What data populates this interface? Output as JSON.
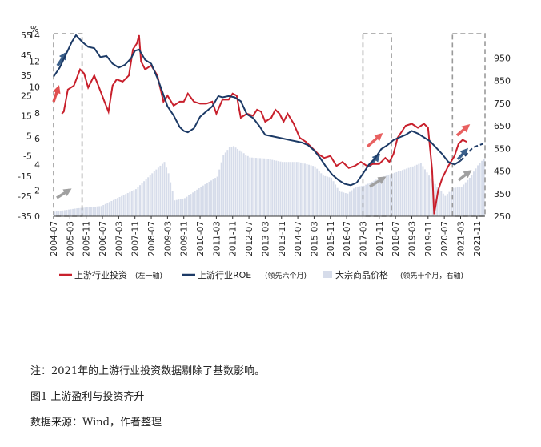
{
  "chart_data": {
    "type": "line",
    "unit_label": "%",
    "left_axis": {
      "outer_ticks": [
        "55",
        "45",
        "35",
        "25",
        "15",
        "5",
        "-5",
        "-15",
        "-25",
        "-35"
      ],
      "inner_ticks": [
        "14",
        "12",
        "10",
        "8",
        "6",
        "4",
        "2",
        "0"
      ],
      "outer_range": [
        -35,
        55
      ]
    },
    "right_axis": {
      "ticks": [
        "950",
        "850",
        "750",
        "650",
        "550",
        "450",
        "350",
        "250"
      ],
      "range": [
        250,
        1050
      ]
    },
    "x_ticks": [
      "2004-07",
      "2005-03",
      "2005-11",
      "2006-07",
      "2007-03",
      "2007-11",
      "2008-07",
      "2009-03",
      "2009-11",
      "2010-07",
      "2011-03",
      "2011-11",
      "2012-07",
      "2013-03",
      "2013-11",
      "2014-07",
      "2015-03",
      "2015-11",
      "2016-07",
      "2017-03",
      "2017-11",
      "2018-07",
      "2019-03",
      "2019-11",
      "2020-07",
      "2021-03",
      "2021-11"
    ],
    "x_range": [
      "2004-07",
      "2022-03"
    ],
    "series": [
      {
        "name": "上游行业投资",
        "name_suffix": "(左一轴)",
        "color": "#c8202c",
        "axis": "left_outer",
        "points": [
          [
            "2004-11",
            16
          ],
          [
            "2004-12",
            17
          ],
          [
            "2005-02",
            28
          ],
          [
            "2005-05",
            30
          ],
          [
            "2005-08",
            38
          ],
          [
            "2005-10",
            36
          ],
          [
            "2005-12",
            29
          ],
          [
            "2006-03",
            35
          ],
          [
            "2006-05",
            30
          ],
          [
            "2006-08",
            22
          ],
          [
            "2006-10",
            17
          ],
          [
            "2006-12",
            30
          ],
          [
            "2007-02",
            33
          ],
          [
            "2007-05",
            32
          ],
          [
            "2007-08",
            35
          ],
          [
            "2007-10",
            48
          ],
          [
            "2007-12",
            51
          ],
          [
            "2008-01",
            55
          ],
          [
            "2008-02",
            42
          ],
          [
            "2008-04",
            38
          ],
          [
            "2008-07",
            40
          ],
          [
            "2008-10",
            35
          ],
          [
            "2009-01",
            22
          ],
          [
            "2009-03",
            25
          ],
          [
            "2009-06",
            20
          ],
          [
            "2009-09",
            22
          ],
          [
            "2009-11",
            22
          ],
          [
            "2010-01",
            26
          ],
          [
            "2010-04",
            22
          ],
          [
            "2010-07",
            21
          ],
          [
            "2010-10",
            21
          ],
          [
            "2011-01",
            22
          ],
          [
            "2011-03",
            16
          ],
          [
            "2011-06",
            23
          ],
          [
            "2011-09",
            23
          ],
          [
            "2011-11",
            26
          ],
          [
            "2012-01",
            25
          ],
          [
            "2012-03",
            14
          ],
          [
            "2012-06",
            16
          ],
          [
            "2012-09",
            15
          ],
          [
            "2012-11",
            18
          ],
          [
            "2013-01",
            17
          ],
          [
            "2013-03",
            12
          ],
          [
            "2013-06",
            14
          ],
          [
            "2013-08",
            18
          ],
          [
            "2013-10",
            16
          ],
          [
            "2013-12",
            12
          ],
          [
            "2014-02",
            16
          ],
          [
            "2014-05",
            11
          ],
          [
            "2014-08",
            4
          ],
          [
            "2014-11",
            2
          ],
          [
            "2015-02",
            -1
          ],
          [
            "2015-05",
            -4
          ],
          [
            "2015-08",
            -6
          ],
          [
            "2015-11",
            -5
          ],
          [
            "2016-02",
            -10
          ],
          [
            "2016-05",
            -8
          ],
          [
            "2016-08",
            -11
          ],
          [
            "2016-11",
            -10
          ],
          [
            "2017-02",
            -8
          ],
          [
            "2017-05",
            -10
          ],
          [
            "2017-08",
            -9
          ],
          [
            "2017-11",
            -9
          ],
          [
            "2018-02",
            -6
          ],
          [
            "2018-04",
            -8
          ],
          [
            "2018-06",
            -4
          ],
          [
            "2018-08",
            4
          ],
          [
            "2018-10",
            7
          ],
          [
            "2018-12",
            10
          ],
          [
            "2019-03",
            11
          ],
          [
            "2019-06",
            9
          ],
          [
            "2019-09",
            11
          ],
          [
            "2019-11",
            9
          ],
          [
            "2020-01",
            -12
          ],
          [
            "2020-02",
            -34
          ],
          [
            "2020-04",
            -22
          ],
          [
            "2020-06",
            -16
          ],
          [
            "2020-09",
            -10
          ],
          [
            "2020-12",
            -5
          ],
          [
            "2021-02",
            1
          ],
          [
            "2021-04",
            3
          ],
          [
            "2021-06",
            2
          ]
        ]
      },
      {
        "name": "上游行业ROE",
        "name_suffix": "(领先六个月)",
        "color": "#1c3a66",
        "axis": "left_inner",
        "points": [
          [
            "2004-07",
            10.8
          ],
          [
            "2004-10",
            11.5
          ],
          [
            "2005-01",
            12.5
          ],
          [
            "2005-04",
            13.5
          ],
          [
            "2005-06",
            14.0
          ],
          [
            "2005-09",
            13.5
          ],
          [
            "2005-12",
            13.1
          ],
          [
            "2006-03",
            13.0
          ],
          [
            "2006-06",
            12.3
          ],
          [
            "2006-09",
            12.4
          ],
          [
            "2006-12",
            11.8
          ],
          [
            "2007-03",
            11.5
          ],
          [
            "2007-06",
            11.7
          ],
          [
            "2007-09",
            12.2
          ],
          [
            "2007-11",
            12.8
          ],
          [
            "2008-01",
            12.9
          ],
          [
            "2008-04",
            12.1
          ],
          [
            "2008-07",
            11.8
          ],
          [
            "2008-10",
            10.7
          ],
          [
            "2009-01",
            9.4
          ],
          [
            "2009-03",
            8.5
          ],
          [
            "2009-06",
            7.8
          ],
          [
            "2009-09",
            6.9
          ],
          [
            "2009-11",
            6.6
          ],
          [
            "2010-01",
            6.5
          ],
          [
            "2010-04",
            6.8
          ],
          [
            "2010-07",
            7.7
          ],
          [
            "2010-10",
            8.1
          ],
          [
            "2011-01",
            8.5
          ],
          [
            "2011-04",
            9.3
          ],
          [
            "2011-06",
            9.2
          ],
          [
            "2011-09",
            9.3
          ],
          [
            "2011-12",
            9.2
          ],
          [
            "2012-03",
            8.9
          ],
          [
            "2012-06",
            7.9
          ],
          [
            "2012-09",
            7.6
          ],
          [
            "2012-12",
            7.0
          ],
          [
            "2013-03",
            6.3
          ],
          [
            "2013-06",
            6.2
          ],
          [
            "2013-09",
            6.1
          ],
          [
            "2013-12",
            6.0
          ],
          [
            "2014-03",
            5.9
          ],
          [
            "2014-06",
            5.8
          ],
          [
            "2014-09",
            5.7
          ],
          [
            "2014-12",
            5.5
          ],
          [
            "2015-03",
            5.1
          ],
          [
            "2015-06",
            4.5
          ],
          [
            "2015-09",
            3.8
          ],
          [
            "2015-12",
            3.2
          ],
          [
            "2016-03",
            2.8
          ],
          [
            "2016-06",
            2.5
          ],
          [
            "2016-09",
            2.4
          ],
          [
            "2016-12",
            2.6
          ],
          [
            "2017-03",
            3.3
          ],
          [
            "2017-06",
            4.0
          ],
          [
            "2017-09",
            4.5
          ],
          [
            "2017-12",
            5.2
          ],
          [
            "2018-03",
            5.5
          ],
          [
            "2018-06",
            5.9
          ],
          [
            "2018-09",
            6.1
          ],
          [
            "2018-12",
            6.3
          ],
          [
            "2019-03",
            6.6
          ],
          [
            "2019-06",
            6.4
          ],
          [
            "2019-09",
            6.1
          ],
          [
            "2019-12",
            5.8
          ],
          [
            "2020-03",
            5.3
          ],
          [
            "2020-06",
            4.8
          ],
          [
            "2020-09",
            4.2
          ],
          [
            "2020-12",
            4.0
          ],
          [
            "2021-03",
            4.3
          ],
          [
            "2021-06",
            4.8
          ],
          [
            "2021-09",
            5.3
          ],
          [
            "2021-12",
            5.5
          ],
          [
            "2022-02",
            5.6
          ]
        ]
      },
      {
        "name": "大宗商品价格",
        "name_suffix": "(领先十个月，右轴)",
        "color": "#d6dcea",
        "axis": "right",
        "points": [
          [
            "2004-07",
            270
          ],
          [
            "2005-06",
            285
          ],
          [
            "2006-06",
            295
          ],
          [
            "2007-03",
            335
          ],
          [
            "2007-11",
            370
          ],
          [
            "2008-07",
            440
          ],
          [
            "2009-01",
            490
          ],
          [
            "2009-03",
            440
          ],
          [
            "2009-06",
            320
          ],
          [
            "2009-11",
            330
          ],
          [
            "2010-07",
            380
          ],
          [
            "2011-03",
            425
          ],
          [
            "2011-06",
            520
          ],
          [
            "2011-09",
            555
          ],
          [
            "2011-11",
            560
          ],
          [
            "2012-03",
            535
          ],
          [
            "2012-07",
            510
          ],
          [
            "2013-03",
            505
          ],
          [
            "2013-11",
            490
          ],
          [
            "2014-07",
            490
          ],
          [
            "2015-03",
            470
          ],
          [
            "2015-07",
            430
          ],
          [
            "2015-11",
            420
          ],
          [
            "2016-03",
            360
          ],
          [
            "2016-07",
            350
          ],
          [
            "2016-11",
            380
          ],
          [
            "2017-03",
            385
          ],
          [
            "2017-11",
            420
          ],
          [
            "2018-07",
            445
          ],
          [
            "2019-03",
            470
          ],
          [
            "2019-07",
            485
          ],
          [
            "2019-11",
            430
          ],
          [
            "2020-03",
            380
          ],
          [
            "2020-07",
            340
          ],
          [
            "2020-11",
            375
          ],
          [
            "2021-03",
            380
          ],
          [
            "2021-07",
            420
          ],
          [
            "2021-11",
            475
          ],
          [
            "2022-02",
            505
          ]
        ]
      }
    ],
    "highlight_periods": [
      [
        "2004-07",
        "2005-09"
      ],
      [
        "2017-03",
        "2018-05"
      ],
      [
        "2020-11",
        "2022-03"
      ]
    ],
    "grid": false,
    "legend_position": "bottom"
  },
  "notes": [
    "注：2021年的上游行业投资数据剔除了基数影响。",
    "图1 上游盈利与投资齐升",
    "数据来源：Wind，作者整理"
  ]
}
